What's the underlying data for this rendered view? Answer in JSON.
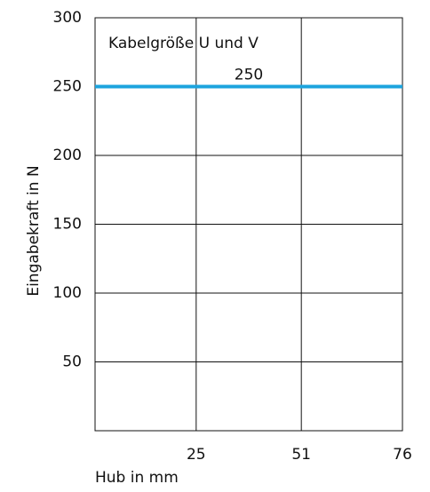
{
  "chart_data": {
    "type": "line",
    "x_label": "Hub in mm",
    "y_label": "Eingabekraft in N",
    "x": [
      0,
      76
    ],
    "series": [
      {
        "name": "Kabelgröße U und V",
        "color": "#1ca4de",
        "values": [
          250,
          250
        ]
      }
    ],
    "xlim": [
      0,
      76
    ],
    "xticks": [
      25,
      51,
      76
    ],
    "ylim": [
      0,
      300
    ],
    "yticks": [
      50,
      100,
      150,
      200,
      250,
      300
    ],
    "grid": true
  }
}
